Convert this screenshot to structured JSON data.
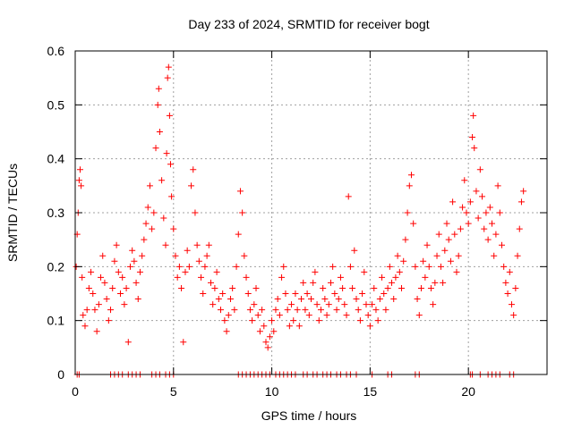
{
  "chart_data": {
    "type": "scatter",
    "title": "Day 233 of 2024, SRMTID for receiver bogt",
    "xlabel": "GPS time / hours",
    "ylabel": "SRMTID / TECUs",
    "xlim": [
      0,
      24
    ],
    "ylim": [
      0,
      0.6
    ],
    "xticks": [
      0,
      5,
      10,
      15,
      20
    ],
    "xtick_labels": [
      "0",
      "5",
      "10",
      "15",
      "20"
    ],
    "yticks": [
      0,
      0.1,
      0.2,
      0.3,
      0.4,
      0.5,
      0.6
    ],
    "ytick_labels": [
      "0",
      "0.1",
      "0.2",
      "0.3",
      "0.4",
      "0.5",
      "0.6"
    ],
    "grid": true,
    "marker": "plus",
    "color": "#ff0000",
    "series": [
      {
        "name": "bogt",
        "points": [
          [
            0.05,
            0.2
          ],
          [
            0.1,
            0.26
          ],
          [
            0.15,
            0.3
          ],
          [
            0.2,
            0.36
          ],
          [
            0.25,
            0.38
          ],
          [
            0.3,
            0.35
          ],
          [
            0.35,
            0.18
          ],
          [
            0.4,
            0.11
          ],
          [
            0.5,
            0.09
          ],
          [
            0.6,
            0.12
          ],
          [
            0.7,
            0.16
          ],
          [
            0.8,
            0.19
          ],
          [
            0.9,
            0.15
          ],
          [
            1.0,
            0.12
          ],
          [
            1.1,
            0.08
          ],
          [
            1.2,
            0.13
          ],
          [
            1.3,
            0.18
          ],
          [
            1.4,
            0.22
          ],
          [
            1.5,
            0.17
          ],
          [
            1.6,
            0.14
          ],
          [
            1.7,
            0.1
          ],
          [
            1.8,
            0.12
          ],
          [
            1.9,
            0.16
          ],
          [
            2.0,
            0.21
          ],
          [
            2.1,
            0.24
          ],
          [
            2.2,
            0.19
          ],
          [
            2.3,
            0.15
          ],
          [
            2.4,
            0.18
          ],
          [
            2.5,
            0.13
          ],
          [
            2.6,
            0.16
          ],
          [
            2.7,
            0.06
          ],
          [
            2.8,
            0.2
          ],
          [
            2.9,
            0.23
          ],
          [
            3.0,
            0.21
          ],
          [
            3.1,
            0.17
          ],
          [
            3.2,
            0.14
          ],
          [
            3.3,
            0.19
          ],
          [
            3.4,
            0.22
          ],
          [
            3.5,
            0.25
          ],
          [
            3.6,
            0.28
          ],
          [
            3.7,
            0.31
          ],
          [
            3.8,
            0.35
          ],
          [
            3.9,
            0.27
          ],
          [
            4.0,
            0.3
          ],
          [
            4.1,
            0.42
          ],
          [
            4.2,
            0.5
          ],
          [
            4.25,
            0.53
          ],
          [
            4.3,
            0.45
          ],
          [
            4.4,
            0.36
          ],
          [
            4.5,
            0.29
          ],
          [
            4.6,
            0.24
          ],
          [
            4.65,
            0.41
          ],
          [
            4.7,
            0.55
          ],
          [
            4.75,
            0.57
          ],
          [
            4.8,
            0.48
          ],
          [
            4.85,
            0.39
          ],
          [
            4.9,
            0.33
          ],
          [
            5.0,
            0.27
          ],
          [
            5.1,
            0.22
          ],
          [
            5.2,
            0.18
          ],
          [
            5.3,
            0.2
          ],
          [
            5.4,
            0.16
          ],
          [
            5.5,
            0.06
          ],
          [
            5.6,
            0.19
          ],
          [
            5.7,
            0.23
          ],
          [
            5.8,
            0.2
          ],
          [
            5.9,
            0.35
          ],
          [
            6.0,
            0.38
          ],
          [
            6.1,
            0.3
          ],
          [
            6.2,
            0.24
          ],
          [
            6.3,
            0.21
          ],
          [
            6.4,
            0.18
          ],
          [
            6.5,
            0.15
          ],
          [
            6.6,
            0.2
          ],
          [
            6.7,
            0.22
          ],
          [
            6.8,
            0.24
          ],
          [
            6.9,
            0.17
          ],
          [
            7.0,
            0.13
          ],
          [
            7.1,
            0.16
          ],
          [
            7.2,
            0.19
          ],
          [
            7.3,
            0.14
          ],
          [
            7.4,
            0.12
          ],
          [
            7.5,
            0.15
          ],
          [
            7.6,
            0.1
          ],
          [
            7.7,
            0.08
          ],
          [
            7.8,
            0.11
          ],
          [
            7.9,
            0.14
          ],
          [
            8.0,
            0.16
          ],
          [
            8.1,
            0.12
          ],
          [
            8.2,
            0.2
          ],
          [
            8.3,
            0.26
          ],
          [
            8.4,
            0.34
          ],
          [
            8.5,
            0.3
          ],
          [
            8.6,
            0.22
          ],
          [
            8.7,
            0.18
          ],
          [
            8.8,
            0.15
          ],
          [
            8.9,
            0.12
          ],
          [
            9.0,
            0.1
          ],
          [
            9.1,
            0.13
          ],
          [
            9.2,
            0.16
          ],
          [
            9.3,
            0.11
          ],
          [
            9.4,
            0.08
          ],
          [
            9.5,
            0.12
          ],
          [
            9.6,
            0.09
          ],
          [
            9.7,
            0.06
          ],
          [
            9.8,
            0.05
          ],
          [
            9.9,
            0.07
          ],
          [
            10.0,
            0.1
          ],
          [
            10.1,
            0.08
          ],
          [
            10.2,
            0.12
          ],
          [
            10.3,
            0.14
          ],
          [
            10.4,
            0.11
          ],
          [
            10.5,
            0.18
          ],
          [
            10.6,
            0.2
          ],
          [
            10.7,
            0.15
          ],
          [
            10.8,
            0.12
          ],
          [
            10.9,
            0.09
          ],
          [
            11.0,
            0.13
          ],
          [
            11.1,
            0.1
          ],
          [
            11.2,
            0.15
          ],
          [
            11.3,
            0.12
          ],
          [
            11.4,
            0.09
          ],
          [
            11.5,
            0.14
          ],
          [
            11.6,
            0.17
          ],
          [
            11.7,
            0.12
          ],
          [
            11.8,
            0.15
          ],
          [
            11.9,
            0.11
          ],
          [
            12.0,
            0.14
          ],
          [
            12.1,
            0.17
          ],
          [
            12.2,
            0.19
          ],
          [
            12.3,
            0.13
          ],
          [
            12.4,
            0.1
          ],
          [
            12.5,
            0.12
          ],
          [
            12.6,
            0.16
          ],
          [
            12.7,
            0.14
          ],
          [
            12.8,
            0.11
          ],
          [
            12.9,
            0.13
          ],
          [
            13.0,
            0.17
          ],
          [
            13.1,
            0.2
          ],
          [
            13.2,
            0.15
          ],
          [
            13.3,
            0.12
          ],
          [
            13.4,
            0.14
          ],
          [
            13.5,
            0.18
          ],
          [
            13.6,
            0.16
          ],
          [
            13.7,
            0.13
          ],
          [
            13.8,
            0.11
          ],
          [
            13.9,
            0.33
          ],
          [
            14.0,
            0.2
          ],
          [
            14.1,
            0.16
          ],
          [
            14.2,
            0.23
          ],
          [
            14.3,
            0.14
          ],
          [
            14.4,
            0.12
          ],
          [
            14.5,
            0.1
          ],
          [
            14.6,
            0.15
          ],
          [
            14.7,
            0.19
          ],
          [
            14.8,
            0.13
          ],
          [
            14.9,
            0.11
          ],
          [
            15.0,
            0.09
          ],
          [
            15.1,
            0.13
          ],
          [
            15.2,
            0.16
          ],
          [
            15.3,
            0.12
          ],
          [
            15.4,
            0.1
          ],
          [
            15.5,
            0.14
          ],
          [
            15.6,
            0.18
          ],
          [
            15.7,
            0.15
          ],
          [
            15.8,
            0.12
          ],
          [
            15.9,
            0.16
          ],
          [
            16.0,
            0.2
          ],
          [
            16.1,
            0.17
          ],
          [
            16.2,
            0.14
          ],
          [
            16.3,
            0.18
          ],
          [
            16.4,
            0.22
          ],
          [
            16.5,
            0.19
          ],
          [
            16.6,
            0.16
          ],
          [
            16.7,
            0.21
          ],
          [
            16.8,
            0.25
          ],
          [
            16.9,
            0.3
          ],
          [
            17.0,
            0.35
          ],
          [
            17.1,
            0.37
          ],
          [
            17.2,
            0.28
          ],
          [
            17.3,
            0.2
          ],
          [
            17.4,
            0.14
          ],
          [
            17.5,
            0.11
          ],
          [
            17.6,
            0.16
          ],
          [
            17.7,
            0.21
          ],
          [
            17.8,
            0.18
          ],
          [
            17.9,
            0.24
          ],
          [
            18.0,
            0.2
          ],
          [
            18.1,
            0.16
          ],
          [
            18.2,
            0.13
          ],
          [
            18.3,
            0.17
          ],
          [
            18.4,
            0.22
          ],
          [
            18.5,
            0.26
          ],
          [
            18.6,
            0.2
          ],
          [
            18.7,
            0.17
          ],
          [
            18.8,
            0.23
          ],
          [
            18.9,
            0.28
          ],
          [
            19.0,
            0.25
          ],
          [
            19.1,
            0.21
          ],
          [
            19.2,
            0.32
          ],
          [
            19.3,
            0.26
          ],
          [
            19.4,
            0.19
          ],
          [
            19.5,
            0.22
          ],
          [
            19.6,
            0.27
          ],
          [
            19.7,
            0.31
          ],
          [
            19.8,
            0.36
          ],
          [
            19.9,
            0.3
          ],
          [
            20.0,
            0.28
          ],
          [
            20.1,
            0.32
          ],
          [
            20.2,
            0.44
          ],
          [
            20.25,
            0.48
          ],
          [
            20.3,
            0.42
          ],
          [
            20.4,
            0.34
          ],
          [
            20.5,
            0.29
          ],
          [
            20.6,
            0.38
          ],
          [
            20.7,
            0.33
          ],
          [
            20.8,
            0.27
          ],
          [
            20.9,
            0.3
          ],
          [
            21.0,
            0.25
          ],
          [
            21.1,
            0.31
          ],
          [
            21.2,
            0.28
          ],
          [
            21.3,
            0.22
          ],
          [
            21.4,
            0.26
          ],
          [
            21.5,
            0.35
          ],
          [
            21.6,
            0.3
          ],
          [
            21.7,
            0.24
          ],
          [
            21.8,
            0.2
          ],
          [
            21.9,
            0.17
          ],
          [
            22.0,
            0.15
          ],
          [
            22.1,
            0.19
          ],
          [
            22.2,
            0.13
          ],
          [
            22.3,
            0.11
          ],
          [
            22.4,
            0.16
          ],
          [
            22.5,
            0.22
          ],
          [
            22.6,
            0.27
          ],
          [
            22.7,
            0.32
          ],
          [
            22.8,
            0.34
          ],
          [
            0.1,
            0.0
          ],
          [
            0.2,
            0.0
          ],
          [
            1.8,
            0.0
          ],
          [
            2.0,
            0.0
          ],
          [
            2.2,
            0.0
          ],
          [
            2.4,
            0.0
          ],
          [
            2.7,
            0.0
          ],
          [
            2.9,
            0.0
          ],
          [
            3.1,
            0.0
          ],
          [
            3.3,
            0.0
          ],
          [
            3.9,
            0.0
          ],
          [
            4.1,
            0.0
          ],
          [
            4.3,
            0.0
          ],
          [
            4.6,
            0.0
          ],
          [
            4.8,
            0.0
          ],
          [
            5.0,
            0.0
          ],
          [
            8.3,
            0.0
          ],
          [
            8.5,
            0.0
          ],
          [
            8.7,
            0.0
          ],
          [
            8.9,
            0.0
          ],
          [
            9.1,
            0.0
          ],
          [
            9.3,
            0.0
          ],
          [
            9.5,
            0.0
          ],
          [
            9.7,
            0.0
          ],
          [
            9.9,
            0.0
          ],
          [
            10.2,
            0.0
          ],
          [
            10.4,
            0.0
          ],
          [
            10.6,
            0.0
          ],
          [
            10.8,
            0.0
          ],
          [
            11.0,
            0.0
          ],
          [
            11.2,
            0.0
          ],
          [
            11.6,
            0.0
          ],
          [
            11.8,
            0.0
          ],
          [
            12.1,
            0.0
          ],
          [
            12.3,
            0.0
          ],
          [
            12.6,
            0.0
          ],
          [
            12.8,
            0.0
          ],
          [
            13.0,
            0.0
          ],
          [
            13.3,
            0.0
          ],
          [
            13.5,
            0.0
          ],
          [
            13.8,
            0.0
          ],
          [
            14.0,
            0.0
          ],
          [
            14.3,
            0.0
          ],
          [
            15.1,
            0.0
          ],
          [
            15.9,
            0.0
          ],
          [
            16.1,
            0.0
          ],
          [
            17.3,
            0.0
          ],
          [
            17.5,
            0.0
          ],
          [
            20.1,
            0.0
          ],
          [
            20.2,
            0.0
          ],
          [
            20.6,
            0.0
          ],
          [
            21.0,
            0.0
          ],
          [
            21.2,
            0.0
          ],
          [
            21.4,
            0.0
          ],
          [
            21.6,
            0.0
          ],
          [
            22.1,
            0.0
          ],
          [
            22.3,
            0.0
          ]
        ]
      }
    ]
  }
}
